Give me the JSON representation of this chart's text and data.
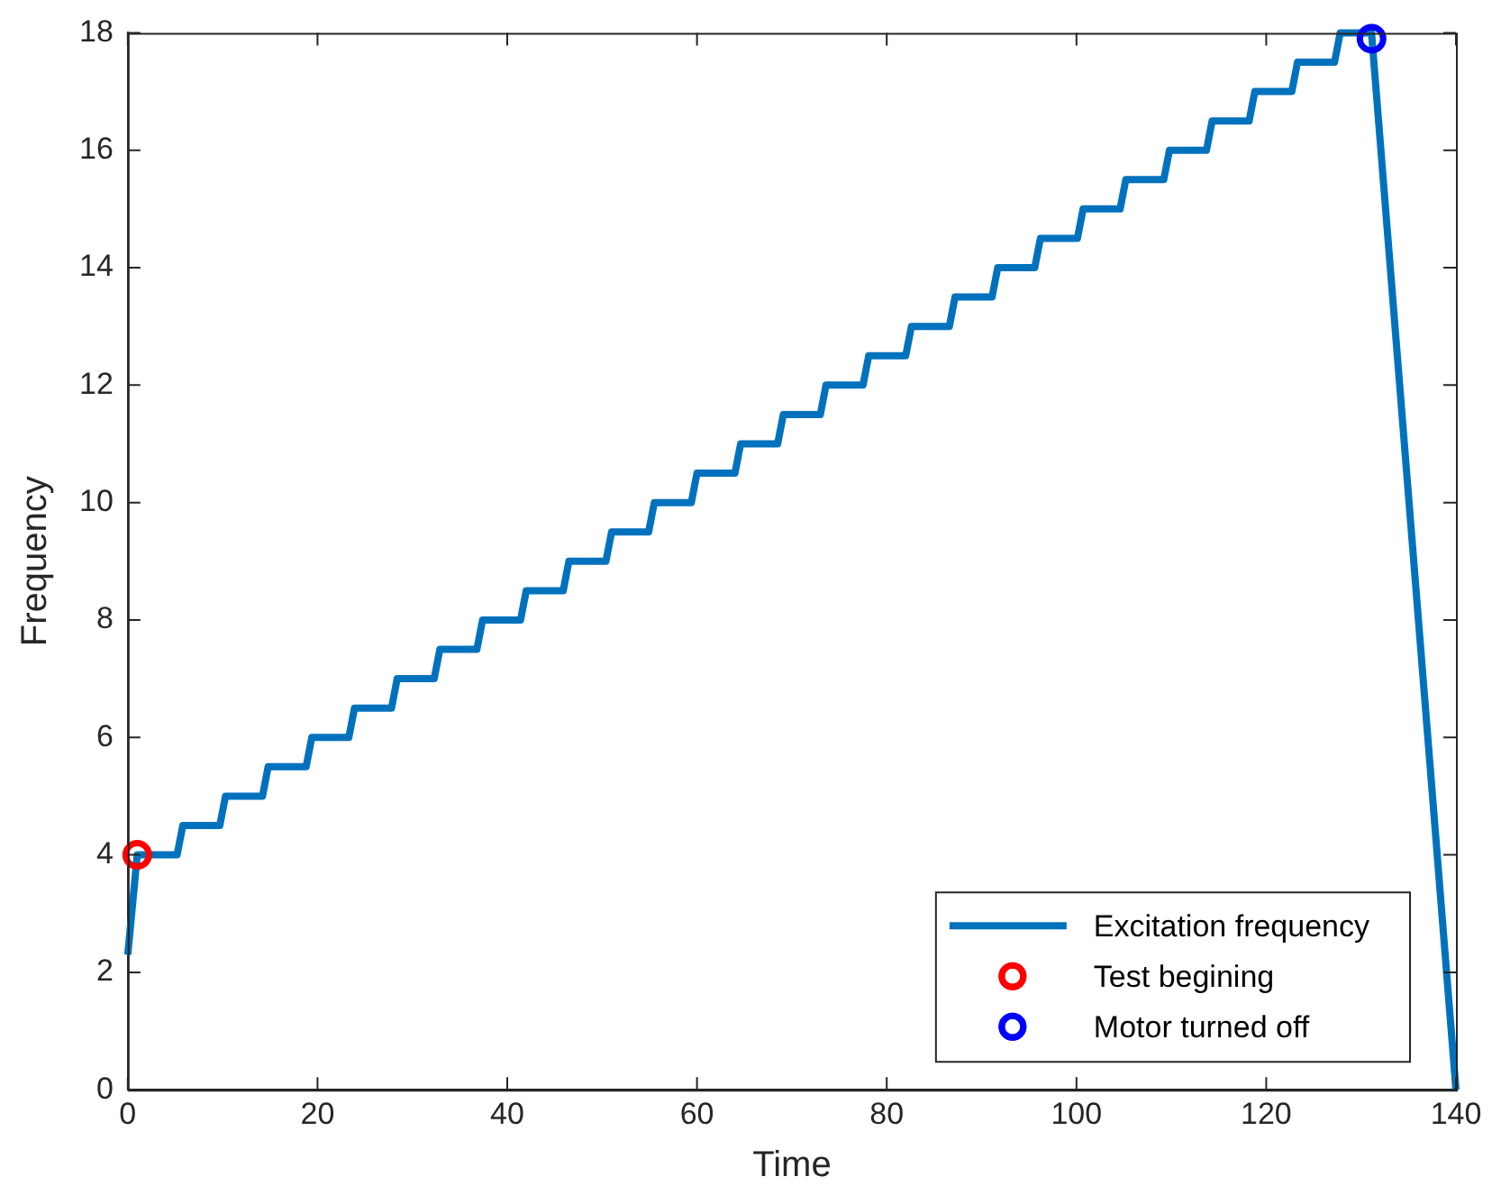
{
  "chart_data": {
    "type": "line",
    "xlabel": "Time",
    "ylabel": "Frequency",
    "xlim": [
      0,
      140
    ],
    "xticks": [
      0,
      20,
      40,
      60,
      80,
      100,
      120,
      140
    ],
    "ylim": [
      0,
      18
    ],
    "yticks": [
      0,
      2,
      4,
      6,
      8,
      10,
      12,
      14,
      16,
      18
    ],
    "grid": false,
    "legend": "bottom right",
    "series": [
      {
        "name": "Excitation frequency",
        "color": "#0072bd",
        "marker": "none",
        "x": [
          0,
          1,
          5.2,
          5.8,
          9.7,
          10.3,
          14.2,
          14.8,
          18.8,
          19.4,
          23.3,
          23.9,
          27.8,
          28.4,
          32.3,
          32.9,
          36.8,
          37.4,
          41.4,
          42.0,
          45.9,
          46.5,
          50.4,
          51.0,
          54.9,
          55.5,
          59.4,
          60.0,
          64.0,
          64.6,
          68.5,
          69.1,
          73.0,
          73.6,
          77.5,
          78.1,
          82.0,
          82.6,
          86.6,
          87.2,
          91.1,
          91.7,
          95.6,
          96.2,
          100.1,
          100.7,
          104.6,
          105.2,
          109.2,
          109.8,
          113.7,
          114.3,
          118.2,
          118.8,
          122.7,
          123.3,
          127.2,
          127.8,
          131.1,
          140
        ],
        "values": [
          2.3,
          4,
          4,
          4.5,
          4.5,
          5,
          5,
          5.5,
          5.5,
          6,
          6,
          6.5,
          6.5,
          7,
          7,
          7.5,
          7.5,
          8,
          8,
          8.5,
          8.5,
          9,
          9,
          9.5,
          9.5,
          10,
          10,
          10.5,
          10.5,
          11,
          11,
          11.5,
          11.5,
          12,
          12,
          12.5,
          12.5,
          13,
          13,
          13.5,
          13.5,
          14,
          14,
          14.5,
          14.5,
          15,
          15,
          15.5,
          15.5,
          16,
          16,
          16.5,
          16.5,
          17,
          17,
          17.5,
          17.5,
          18,
          18,
          0
        ]
      },
      {
        "name": "Test begining",
        "type": "scatter",
        "color": "#ff0000",
        "marker": "circle",
        "x": [
          1
        ],
        "values": [
          4
        ]
      },
      {
        "name": "Motor turned off",
        "type": "scatter",
        "color": "#0000ff",
        "marker": "circle",
        "x": [
          131.1
        ],
        "values": [
          17.9
        ]
      }
    ]
  }
}
